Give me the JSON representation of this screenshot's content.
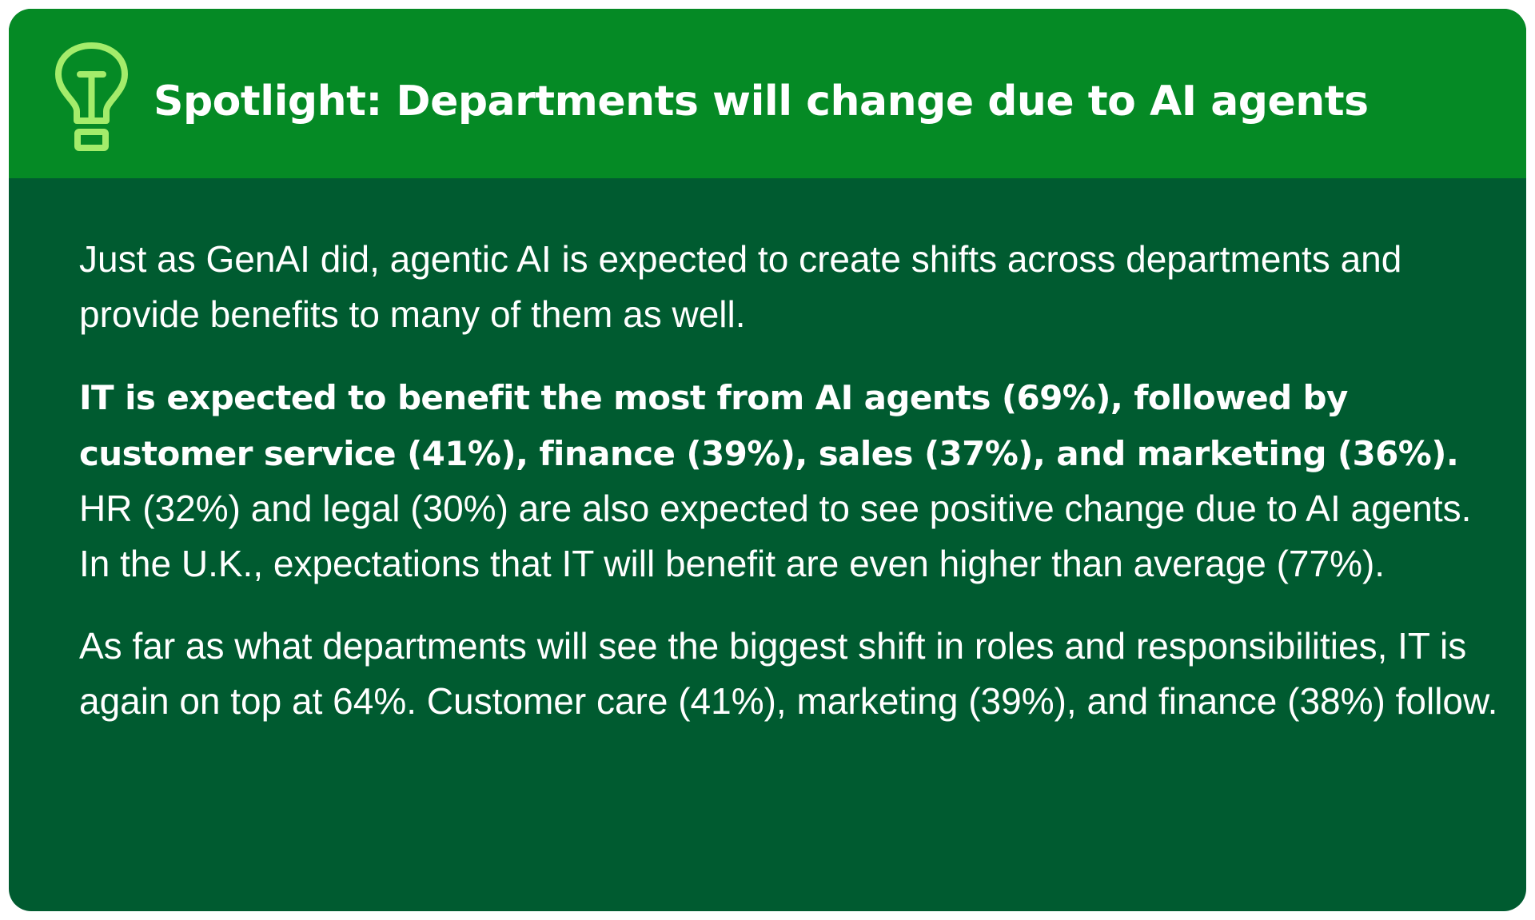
{
  "header": {
    "icon": "lightbulb-icon",
    "title": "Spotlight: Departments will change due to AI agents"
  },
  "body": {
    "paragraph_1": "Just as GenAI did, agentic AI is expected to create shifts across departments and provide benefits to many of them as well.",
    "paragraph_2_bold": "IT is expected to benefit the most from AI agents (69%), followed by customer service (41%), finance (39%), sales (37%), and marketing (36%).",
    "paragraph_2_rest": " HR (32%) and legal (30%) are also expected to see positive change due to AI agents. In the U.K., expectations that IT will benefit are even higher than average (77%).",
    "paragraph_3": "As far as what departments will see the biggest shift in roles and responsibilities, IT is again on top at 64%. Customer care (41%), marketing (39%), and finance (38%) follow."
  },
  "colors": {
    "header_background": "#058a25",
    "body_background": "#005b30",
    "icon_stroke": "#a4ec6b",
    "text": "#ffffff"
  }
}
